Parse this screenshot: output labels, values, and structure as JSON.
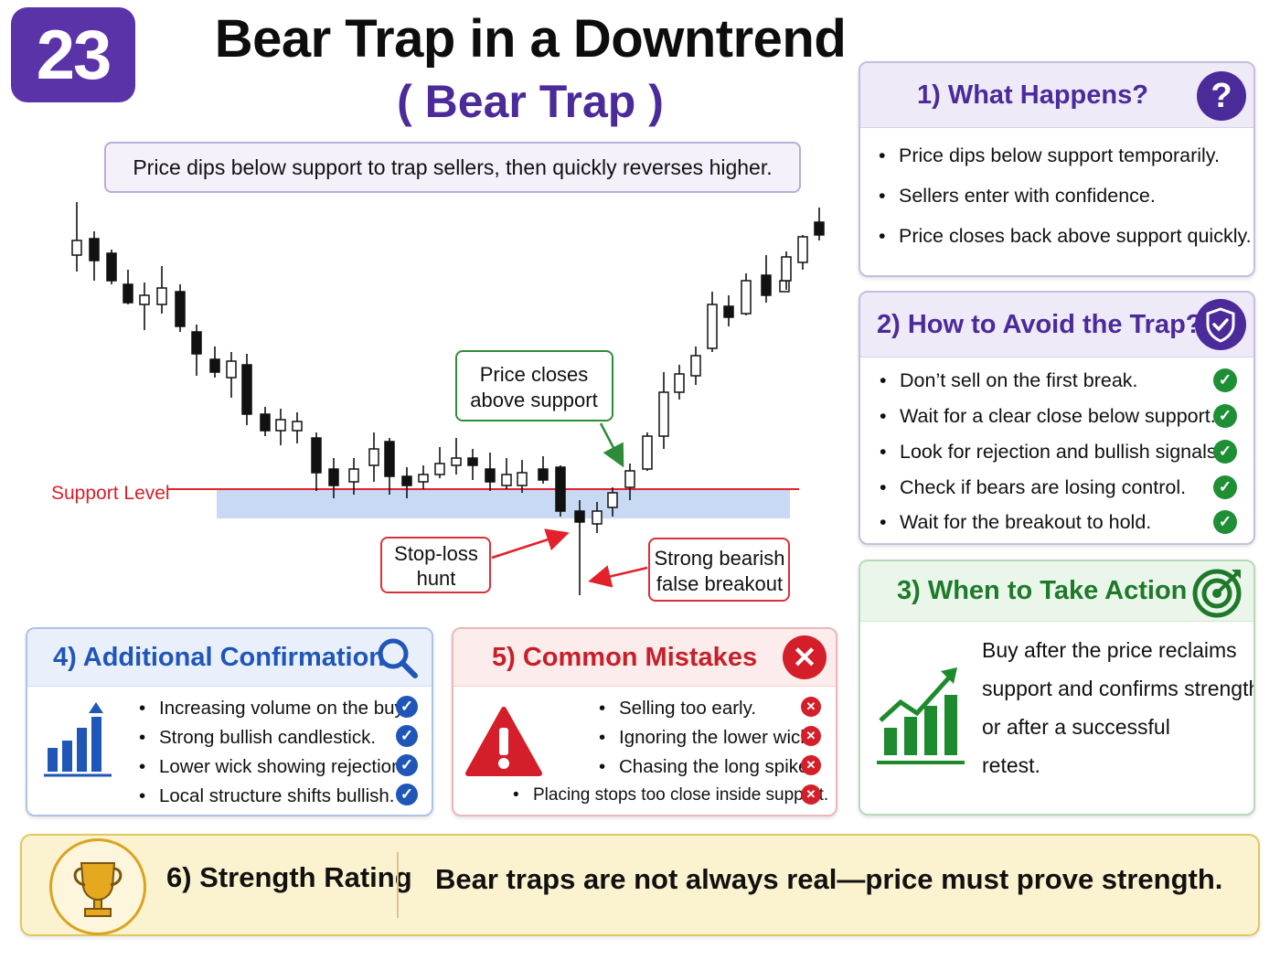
{
  "badge": "23",
  "title": "Bear Trap in a Downtrend",
  "subtitle": "( Bear Trap )",
  "tagline": "Price dips below support to trap sellers, then quickly reverses higher.",
  "chart": {
    "support_label": "Support Level",
    "callout_closes": [
      "Price closes",
      "above support"
    ],
    "callout_stoploss": [
      "Stop-loss",
      "hunt"
    ],
    "callout_false": [
      "Strong bearish",
      "false breakout"
    ],
    "colors": {
      "support": "#e3212b",
      "zone": "#c7d9f3",
      "callout_green": "#2e8b3a",
      "callout_red": "#d9313a"
    }
  },
  "panels": {
    "what": {
      "title": "1) What Happens?",
      "icon": "question-icon",
      "items": [
        "Price dips below support temporarily.",
        "Sellers enter with confidence.",
        "Price closes back above support quickly."
      ]
    },
    "avoid": {
      "title": "2) How to Avoid the Trap?",
      "icon": "shield-check-icon",
      "items": [
        "Don’t sell on the first break.",
        "Wait for a clear close below support.",
        "Look for rejection and bullish signals.",
        "Check if bears are losing control.",
        "Wait for the breakout to hold."
      ]
    },
    "action": {
      "title": "3) When to Take Action",
      "icon": "target-icon",
      "lines": [
        "Buy after the price reclaims",
        "support and confirms strength,",
        "or after a successful",
        "retest."
      ]
    },
    "confirm": {
      "title": "4) Additional Confirmation",
      "icon": "search-icon",
      "items": [
        "Increasing volume on the buy.",
        "Strong bullish candlestick.",
        "Lower wick showing rejection.",
        "Local structure shifts bullish."
      ]
    },
    "mistakes": {
      "title": "5) Common Mistakes",
      "icon": "close-circle-icon",
      "items": [
        "Selling too early.",
        "Ignoring the lower wick.",
        "Chasing the long spike.",
        "Placing stops too close inside support."
      ]
    }
  },
  "footer": {
    "label": "6) Strength Rating",
    "message": "Bear traps are not always real—price must prove strength."
  },
  "colors": {
    "purple": "#4b2a9a",
    "blue": "#1f56b8",
    "red": "#c8202a",
    "green": "#1e7a2a"
  }
}
